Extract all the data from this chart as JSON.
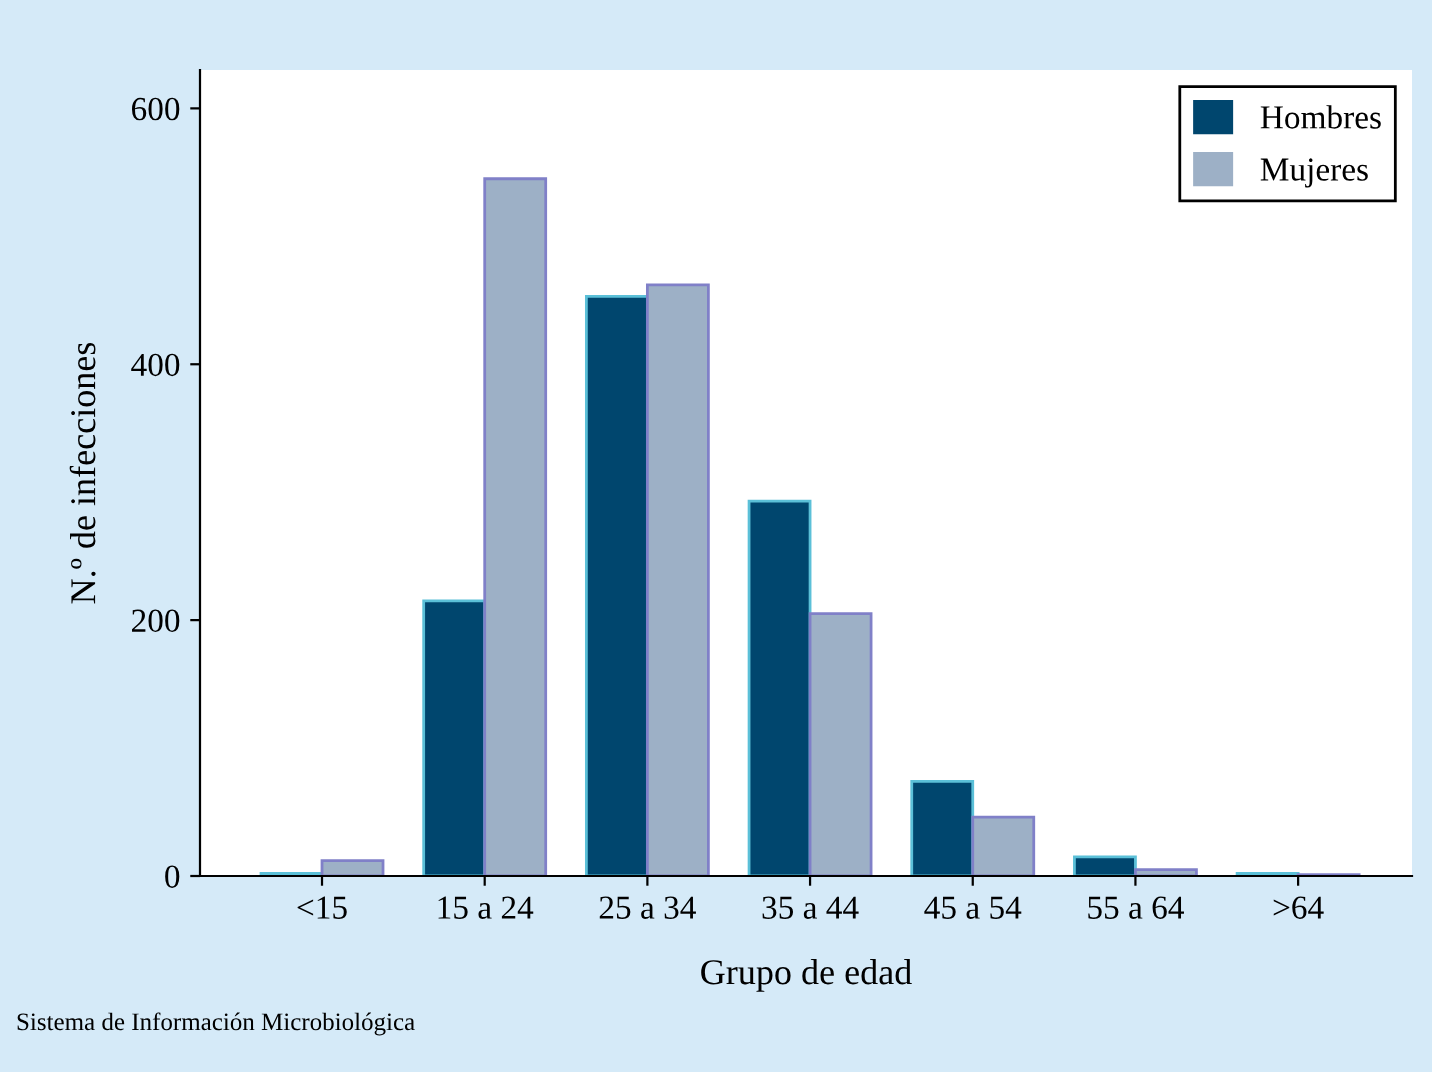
{
  "chart_data": {
    "type": "bar",
    "xlabel": "Grupo de edad",
    "ylabel": "N.º de infecciones",
    "categories": [
      "<15",
      "15 a 24",
      "25 a 34",
      "35 a 44",
      "45 a 54",
      "55 a 64",
      ">64"
    ],
    "series": [
      {
        "name": "Hombres",
        "color": "#00466e",
        "values": [
          2,
          215,
          453,
          293,
          74,
          15,
          2
        ]
      },
      {
        "name": "Mujeres",
        "color": "#9db0c6",
        "values": [
          12,
          545,
          462,
          205,
          46,
          5,
          1
        ]
      }
    ],
    "ylim": [
      0,
      630
    ],
    "yticks": [
      0,
      200,
      400,
      600
    ],
    "grid": false,
    "legend": "top right",
    "annotations": [
      "Sistema de Información Microbiológica"
    ]
  }
}
